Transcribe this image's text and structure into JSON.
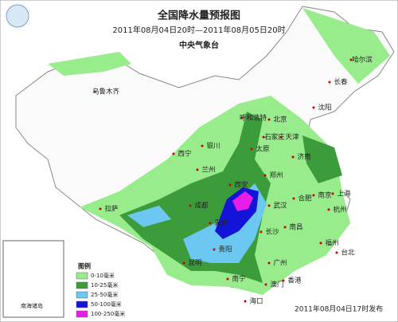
{
  "header": {
    "title": "全国降水量预报图",
    "subtitle": "2011年08月04日20时—2011年08月05日20时",
    "agency": "中央气象台"
  },
  "cities": [
    "乌鲁木齐",
    "哈尔滨",
    "长春",
    "沈阳",
    "呼和浩特",
    "北京",
    "天津",
    "石家庄",
    "太原",
    "银川",
    "西宁",
    "兰州",
    "济南",
    "郑州",
    "西安",
    "南京",
    "合肥",
    "上海",
    "武汉",
    "杭州",
    "成都",
    "拉萨",
    "重庆",
    "长沙",
    "南昌",
    "贵阳",
    "福州",
    "台北",
    "昆明",
    "广州",
    "南宁",
    "香港",
    "澳门",
    "海口"
  ],
  "legend": {
    "title": "图例",
    "items": [
      {
        "label": "0-10毫米",
        "color": "#98ec8c"
      },
      {
        "label": "10-25毫米",
        "color": "#3c9c3c"
      },
      {
        "label": "25-50毫米",
        "color": "#6cc8f0"
      },
      {
        "label": "50-100毫米",
        "color": "#1414d8"
      },
      {
        "label": "100-250毫米",
        "color": "#e81ee8"
      }
    ]
  },
  "inset": {
    "label": "南海诸岛"
  },
  "footer": "2011年08月04日17时发布"
}
